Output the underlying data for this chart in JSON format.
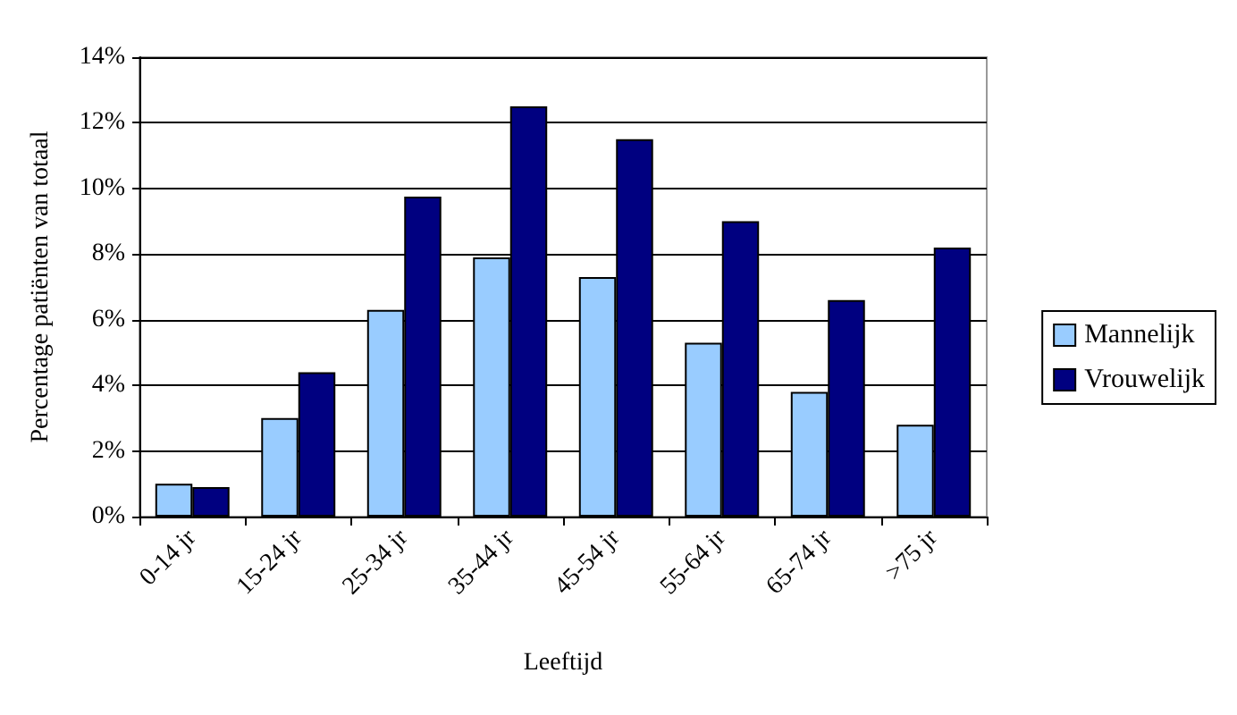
{
  "chart_data": {
    "type": "bar",
    "xlabel": "Leeftijd",
    "ylabel": "Percentage patiënten van totaal",
    "categories": [
      "0-14 jr",
      "15-24 jr",
      "25-34 jr",
      "35-44 jr",
      "45-54 jr",
      "55-64 jr",
      "65-74 jr",
      ">75 jr"
    ],
    "series": [
      {
        "name": "Mannelijk",
        "color": "#99ccff",
        "values": [
          1.0,
          3.0,
          6.3,
          7.9,
          7.3,
          5.3,
          3.8,
          2.8
        ]
      },
      {
        "name": "Vrouwelijk",
        "color": "#000080",
        "values": [
          0.9,
          4.4,
          9.75,
          12.5,
          11.5,
          9.0,
          6.6,
          8.2
        ]
      }
    ],
    "ylim": [
      0,
      14
    ],
    "yticks": [
      {
        "value": 0,
        "label": "0%"
      },
      {
        "value": 2,
        "label": "2%"
      },
      {
        "value": 4,
        "label": "4%"
      },
      {
        "value": 6,
        "label": "6%"
      },
      {
        "value": 8,
        "label": "8%"
      },
      {
        "value": 10,
        "label": "10%"
      },
      {
        "value": 12,
        "label": "12%"
      },
      {
        "value": 14,
        "label": "14%"
      }
    ],
    "grid": "y",
    "legend": "right"
  }
}
